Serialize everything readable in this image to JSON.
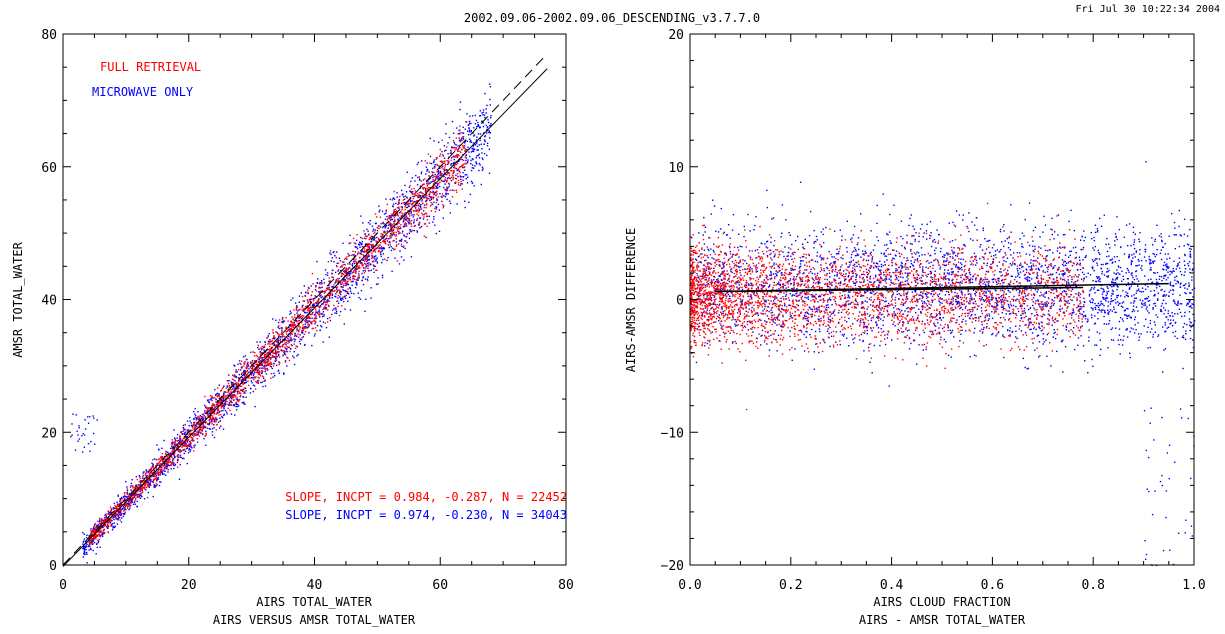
{
  "header": {
    "title": "2002.09.06-2002.09.06_DESCENDING_v3.7.7.0",
    "timestamp": "Fri Jul 30 10:22:34 2004"
  },
  "colors": {
    "full": "#ff0000",
    "micro": "#0000ff",
    "axis": "#000000"
  },
  "chart_data": [
    {
      "type": "scatter",
      "title": "AIRS VERSUS AMSR TOTAL_WATER",
      "xlabel": "AIRS TOTAL_WATER",
      "ylabel": "AMSR TOTAL_WATER",
      "xlim": [
        0,
        80
      ],
      "ylim": [
        0,
        80
      ],
      "xticks": [
        "0",
        "20",
        "40",
        "60",
        "80"
      ],
      "yticks": [
        "0",
        "20",
        "40",
        "60",
        "80"
      ],
      "legend": [
        "FULL RETRIEVAL",
        "MICROWAVE ONLY"
      ],
      "legend_position": "top-left",
      "annotations": [
        "SLOPE, INCPT = 0.984, -0.287, N = 22452",
        "SLOPE, INCPT = 0.974, -0.230, N = 34043"
      ],
      "series": [
        {
          "name": "FULL RETRIEVAL",
          "color": "#ff0000",
          "n": 22452,
          "x_range": [
            4,
            64
          ]
        },
        {
          "name": "MICROWAVE ONLY",
          "color": "#0000ff",
          "n": 34043,
          "x_range": [
            3,
            68
          ]
        }
      ],
      "fit_lines": [
        {
          "style": "dashed",
          "slope": 1.0,
          "intercept": 0.0,
          "x_range": [
            0,
            77
          ]
        },
        {
          "style": "solid",
          "slope": 0.974,
          "intercept": -0.23,
          "x_range": [
            0,
            77
          ]
        }
      ]
    },
    {
      "type": "scatter",
      "title": "AIRS - AMSR TOTAL_WATER",
      "xlabel": "AIRS CLOUD FRACTION",
      "ylabel": "AIRS-AMSR DIFFERENCE",
      "xlim": [
        0.0,
        1.0
      ],
      "ylim": [
        -20,
        20
      ],
      "xticks": [
        "0.0",
        "0.2",
        "0.4",
        "0.6",
        "0.8",
        "1.0"
      ],
      "yticks": [
        "-20",
        "-10",
        "0",
        "10",
        "20"
      ],
      "series": [
        {
          "name": "FULL RETRIEVAL",
          "color": "#ff0000",
          "x_range": [
            0.0,
            0.78
          ],
          "mean": 0.4,
          "spread": 1.8
        },
        {
          "name": "MICROWAVE ONLY",
          "color": "#0000ff",
          "x_range": [
            0.0,
            1.0
          ],
          "mean": 1.0,
          "spread": 2.2
        }
      ],
      "fit_lines": [
        {
          "style": "solid",
          "points": [
            [
              0.05,
              0.6
            ],
            [
              0.78,
              0.9
            ]
          ]
        },
        {
          "style": "solid",
          "points": [
            [
              0.05,
              0.6
            ],
            [
              0.95,
              1.2
            ]
          ]
        }
      ]
    }
  ]
}
